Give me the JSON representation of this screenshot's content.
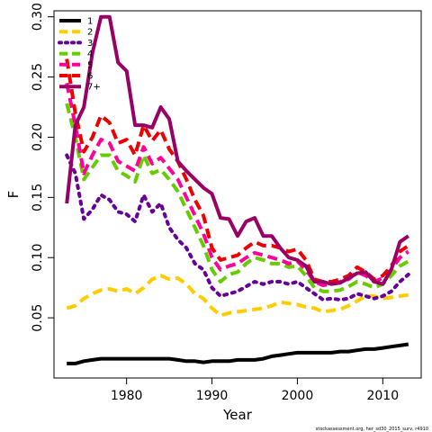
{
  "chart_data": {
    "type": "line",
    "xlabel": "Year",
    "ylabel": "F",
    "xlim": [
      1971.5,
      2014.5
    ],
    "ylim": [
      0.0,
      0.305
    ],
    "x_ticks": [
      1980,
      1990,
      2000,
      2010
    ],
    "y_ticks": [
      0.05,
      0.1,
      0.15,
      0.2,
      0.25,
      0.3
    ],
    "y_tick_labels": [
      "0.05",
      "0.10",
      "0.15",
      "0.20",
      "0.25",
      "0.30"
    ],
    "grid": false,
    "legend_position": "top-left",
    "footnote": "stockassessment.org, her_sd30_2015_surv, r4910",
    "x": [
      1973,
      1974,
      1975,
      1976,
      1977,
      1978,
      1979,
      1980,
      1981,
      1982,
      1983,
      1984,
      1985,
      1986,
      1987,
      1988,
      1989,
      1990,
      1991,
      1992,
      1993,
      1994,
      1995,
      1996,
      1997,
      1998,
      1999,
      2000,
      2001,
      2002,
      2003,
      2004,
      2005,
      2006,
      2007,
      2008,
      2009,
      2010,
      2011,
      2012,
      2013
    ],
    "series": [
      {
        "name": "1",
        "color": "#000000",
        "dash": "solid",
        "values": [
          0.012,
          0.012,
          0.014,
          0.015,
          0.016,
          0.016,
          0.016,
          0.016,
          0.016,
          0.016,
          0.016,
          0.016,
          0.016,
          0.015,
          0.014,
          0.014,
          0.013,
          0.014,
          0.014,
          0.014,
          0.015,
          0.015,
          0.015,
          0.016,
          0.018,
          0.019,
          0.02,
          0.021,
          0.021,
          0.021,
          0.021,
          0.021,
          0.022,
          0.022,
          0.023,
          0.024,
          0.024,
          0.025,
          0.026,
          0.027,
          0.028
        ]
      },
      {
        "name": "2",
        "color": "#FFCC00",
        "dash": "dashed",
        "values": [
          0.058,
          0.06,
          0.066,
          0.07,
          0.073,
          0.074,
          0.072,
          0.074,
          0.07,
          0.075,
          0.082,
          0.085,
          0.082,
          0.083,
          0.078,
          0.07,
          0.066,
          0.058,
          0.052,
          0.054,
          0.055,
          0.056,
          0.057,
          0.058,
          0.06,
          0.063,
          0.062,
          0.061,
          0.059,
          0.058,
          0.055,
          0.056,
          0.057,
          0.06,
          0.064,
          0.068,
          0.068,
          0.066,
          0.067,
          0.068,
          0.069
        ]
      },
      {
        "name": "3",
        "color": "#660099",
        "dash": "dotted",
        "values": [
          0.185,
          0.17,
          0.132,
          0.14,
          0.152,
          0.148,
          0.138,
          0.136,
          0.13,
          0.152,
          0.138,
          0.145,
          0.125,
          0.115,
          0.108,
          0.095,
          0.09,
          0.075,
          0.068,
          0.07,
          0.072,
          0.076,
          0.08,
          0.078,
          0.08,
          0.08,
          0.078,
          0.08,
          0.075,
          0.07,
          0.065,
          0.066,
          0.065,
          0.066,
          0.07,
          0.068,
          0.066,
          0.068,
          0.072,
          0.08,
          0.086
        ]
      },
      {
        "name": "4",
        "color": "#66CC00",
        "dash": "dashed",
        "values": [
          0.228,
          0.2,
          0.165,
          0.175,
          0.185,
          0.185,
          0.172,
          0.168,
          0.163,
          0.185,
          0.17,
          0.173,
          0.165,
          0.155,
          0.14,
          0.125,
          0.11,
          0.09,
          0.08,
          0.086,
          0.088,
          0.095,
          0.1,
          0.098,
          0.095,
          0.095,
          0.092,
          0.093,
          0.085,
          0.075,
          0.072,
          0.072,
          0.073,
          0.076,
          0.08,
          0.078,
          0.075,
          0.078,
          0.085,
          0.093,
          0.097
        ]
      },
      {
        "name": "5",
        "color": "#FF0099",
        "dash": "dashed",
        "values": [
          0.245,
          0.21,
          0.17,
          0.185,
          0.198,
          0.195,
          0.18,
          0.176,
          0.172,
          0.192,
          0.178,
          0.183,
          0.174,
          0.165,
          0.15,
          0.135,
          0.12,
          0.1,
          0.09,
          0.093,
          0.095,
          0.1,
          0.104,
          0.102,
          0.1,
          0.098,
          0.095,
          0.097,
          0.09,
          0.08,
          0.077,
          0.078,
          0.08,
          0.082,
          0.088,
          0.085,
          0.08,
          0.083,
          0.09,
          0.1,
          0.105
        ]
      },
      {
        "name": "6",
        "color": "#EE0000",
        "dash": "dashed",
        "values": [
          0.265,
          0.22,
          0.188,
          0.2,
          0.218,
          0.212,
          0.195,
          0.198,
          0.185,
          0.21,
          0.197,
          0.206,
          0.19,
          0.18,
          0.165,
          0.148,
          0.135,
          0.108,
          0.098,
          0.1,
          0.102,
          0.108,
          0.113,
          0.11,
          0.11,
          0.108,
          0.105,
          0.107,
          0.098,
          0.082,
          0.08,
          0.08,
          0.082,
          0.085,
          0.092,
          0.088,
          0.082,
          0.085,
          0.093,
          0.105,
          0.11
        ]
      },
      {
        "name": "7+",
        "color": "#990066",
        "dash": "solid",
        "values": [
          0.145,
          0.21,
          0.225,
          0.27,
          0.3,
          0.3,
          0.262,
          0.255,
          0.21,
          0.21,
          0.208,
          0.225,
          0.215,
          0.18,
          0.172,
          0.165,
          0.158,
          0.153,
          0.133,
          0.132,
          0.118,
          0.13,
          0.133,
          0.118,
          0.118,
          0.108,
          0.1,
          0.098,
          0.093,
          0.08,
          0.08,
          0.078,
          0.079,
          0.083,
          0.087,
          0.088,
          0.08,
          0.078,
          0.09,
          0.113,
          0.118
        ]
      }
    ]
  }
}
